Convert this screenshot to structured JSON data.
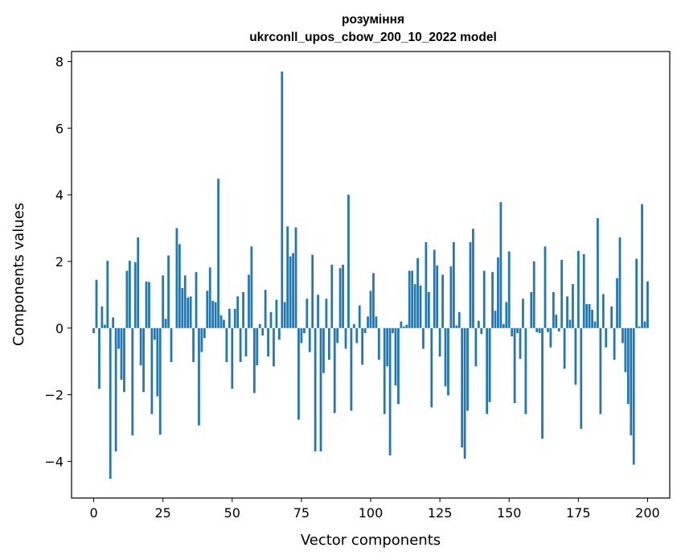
{
  "chart_data": {
    "type": "bar",
    "title": "розуміння",
    "subtitle": "ukrconll_upos_cbow_200_10_2022 model",
    "xlabel": "Vector components",
    "ylabel": "Components values",
    "xlim": [
      -8,
      208
    ],
    "ylim": [
      -5.1,
      8.3
    ],
    "xticks": [
      0,
      25,
      50,
      75,
      100,
      125,
      150,
      175,
      200
    ],
    "yticks": [
      -4,
      -2,
      0,
      2,
      4,
      6,
      8
    ],
    "bar_color": "#1f77b4",
    "grid": false,
    "values": [
      -0.15,
      1.45,
      -1.82,
      0.65,
      0.1,
      2.02,
      -4.52,
      0.32,
      -3.7,
      -0.62,
      -1.55,
      -1.92,
      1.72,
      2.02,
      -3.22,
      1.98,
      2.72,
      -1.12,
      -1.92,
      1.4,
      1.38,
      -2.58,
      -0.35,
      -2.05,
      -3.2,
      1.58,
      0.28,
      2.18,
      -1.02,
      0.0,
      3.0,
      2.52,
      1.2,
      1.58,
      0.92,
      0.95,
      -1.02,
      1.68,
      -2.92,
      -0.72,
      -0.3,
      1.12,
      1.82,
      0.82,
      0.78,
      4.48,
      0.38,
      0.25,
      -1.02,
      0.58,
      -1.82,
      0.58,
      0.95,
      -1.02,
      1.08,
      -0.85,
      1.6,
      2.45,
      -1.95,
      -1.12,
      0.12,
      -0.22,
      1.15,
      -0.85,
      0.48,
      -1.15,
      0.85,
      -0.35,
      7.7,
      0.78,
      3.05,
      2.15,
      2.25,
      3.02,
      -2.75,
      -0.45,
      -0.15,
      0.88,
      -0.72,
      2.2,
      -3.7,
      1.0,
      -3.7,
      -1.35,
      0.88,
      -0.95,
      1.9,
      -2.55,
      -0.45,
      1.8,
      1.9,
      -0.62,
      4.0,
      -2.48,
      0.12,
      -0.45,
      0.68,
      -1.1,
      -0.15,
      0.35,
      1.12,
      1.65,
      0.35,
      -0.95,
      0.0,
      -2.58,
      -1.15,
      -3.82,
      -0.15,
      -1.72,
      -2.28,
      0.2,
      0.05,
      0.1,
      1.72,
      1.72,
      1.32,
      2.1,
      1.28,
      -0.62,
      2.58,
      1.08,
      -2.38,
      2.35,
      1.88,
      -0.85,
      1.6,
      -1.75,
      -2.02,
      1.85,
      2.58,
      0.08,
      0.48,
      -3.58,
      -3.92,
      -2.48,
      2.58,
      2.98,
      -1.15,
      0.22,
      -0.18,
      1.72,
      -2.58,
      -2.22,
      1.68,
      0.52,
      2.12,
      3.78,
      0.12,
      0.78,
      2.3,
      -0.25,
      -2.25,
      -0.15,
      -0.92,
      0.88,
      -2.58,
      0.0,
      1.08,
      2.0,
      -0.12,
      -0.15,
      -3.32,
      2.45,
      -0.12,
      -0.58,
      1.08,
      0.4,
      -0.1,
      2.05,
      -1.22,
      0.95,
      0.25,
      1.32,
      -1.7,
      2.32,
      -3.02,
      2.22,
      0.72,
      0.72,
      0.55,
      0.2,
      3.3,
      -2.58,
      1.02,
      -0.58,
      0.0,
      0.65,
      -0.95,
      1.5,
      2.72,
      -0.45,
      -1.32,
      -2.28,
      -3.22,
      -4.1,
      2.08,
      0.05,
      3.72,
      0.2,
      1.4
    ]
  }
}
